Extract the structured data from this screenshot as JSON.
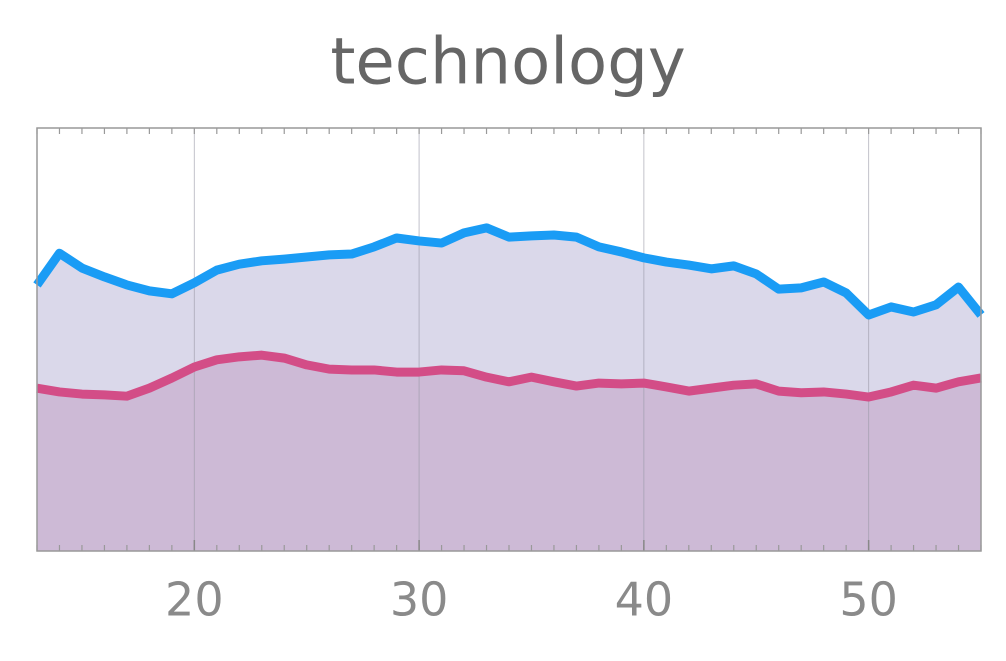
{
  "chart_data": {
    "type": "area",
    "title": "technology",
    "x": [
      13,
      14,
      15,
      16,
      17,
      18,
      19,
      20,
      21,
      22,
      23,
      24,
      25,
      26,
      27,
      28,
      29,
      30,
      31,
      32,
      33,
      34,
      35,
      36,
      37,
      38,
      39,
      40,
      41,
      42,
      43,
      44,
      45,
      46,
      47,
      48,
      49,
      50,
      51,
      52,
      53,
      54,
      55
    ],
    "series": [
      {
        "color": "#1a9cf5",
        "fill": "#dad8ea",
        "values": [
          62.9,
          70.4,
          66.9,
          64.8,
          62.9,
          61.5,
          60.8,
          63.4,
          66.4,
          67.8,
          68.6,
          69.0,
          69.5,
          70.0,
          70.2,
          71.9,
          74.0,
          73.3,
          72.8,
          75.2,
          76.4,
          74.2,
          74.5,
          74.7,
          74.2,
          71.9,
          70.7,
          69.3,
          68.3,
          67.6,
          66.7,
          67.4,
          65.5,
          61.9,
          62.2,
          63.6,
          61.0,
          55.8,
          57.7,
          56.5,
          58.2,
          62.4,
          55.8
        ]
      },
      {
        "color": "#d34d87",
        "fill": "#cab5d2",
        "values": [
          38.5,
          37.6,
          37.1,
          36.9,
          36.6,
          38.5,
          40.9,
          43.5,
          45.2,
          45.9,
          46.3,
          45.6,
          44.0,
          43.0,
          42.8,
          42.8,
          42.3,
          42.3,
          42.8,
          42.6,
          41.1,
          40.0,
          41.1,
          40.0,
          39.0,
          39.7,
          39.5,
          39.7,
          38.8,
          37.8,
          38.5,
          39.2,
          39.5,
          37.8,
          37.4,
          37.6,
          37.1,
          36.4,
          37.6,
          39.2,
          38.5,
          40.0,
          40.9
        ]
      }
    ],
    "xlim": [
      13,
      55
    ],
    "ylim": [
      0,
      100
    ],
    "xticks": [
      20,
      30,
      40,
      50
    ],
    "grid": true
  }
}
